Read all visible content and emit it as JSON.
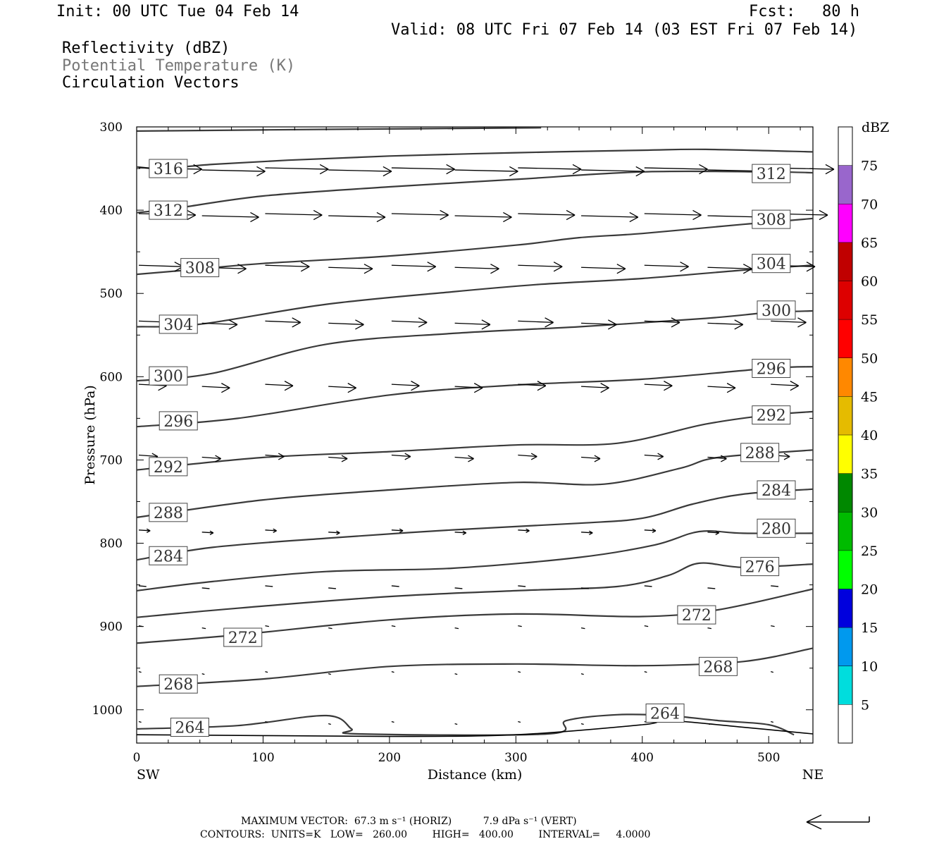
{
  "header": {
    "init": "Init: 00 UTC Tue 04 Feb 14",
    "fcst_label": "Fcst:",
    "fcst_value": "80 h",
    "valid": "Valid: 08 UTC Fri 07 Feb 14 (03 EST Fri 07 Feb 14)",
    "fields": [
      "Reflectivity (dBZ)",
      "Potential Temperature (K)",
      "Circulation Vectors"
    ]
  },
  "footer": {
    "max_vector": "MAXIMUM VECTOR:  67.3 m s⁻¹ (HORIZ)          7.9 dPa s⁻¹ (VERT)",
    "contours": "CONTOURS:  UNITS=K   LOW=   260.00        HIGH=   400.00        INTERVAL=     4.0000"
  },
  "chart_data": {
    "type": "contour",
    "xlabel": "Distance (km)",
    "ylabel": "Pressure (hPa)",
    "xlim": [
      0,
      535
    ],
    "ylim": [
      1040,
      300
    ],
    "x_ticks": [
      0,
      100,
      200,
      300,
      400,
      500
    ],
    "y_ticks": [
      300,
      400,
      500,
      600,
      700,
      800,
      900,
      1000
    ],
    "x_end_labels": {
      "left": "SW",
      "right": "NE"
    },
    "colorbar": {
      "title": "dBZ",
      "labels": [
        75,
        70,
        65,
        60,
        55,
        50,
        45,
        40,
        35,
        30,
        25,
        20,
        15,
        10,
        5
      ],
      "colors": [
        "#ffffff",
        "#9966cc",
        "#ff00ff",
        "#c00000",
        "#dd0000",
        "#ff0000",
        "#ff8800",
        "#e5bb00",
        "#ffff00",
        "#008800",
        "#00bb00",
        "#00ff00",
        "#0000dd",
        "#0099ee",
        "#00dddd",
        "#ffffff"
      ]
    },
    "isentropes": [
      {
        "theta": 316,
        "points": [
          [
            0,
            348
          ],
          [
            20,
            350
          ],
          [
            60,
            345
          ],
          [
            120,
            340
          ],
          [
            200,
            335
          ],
          [
            300,
            331
          ],
          [
            400,
            328
          ],
          [
            450,
            327
          ],
          [
            535,
            330
          ]
        ]
      },
      {
        "theta": 312,
        "points": [
          [
            0,
            403
          ],
          [
            30,
            398
          ],
          [
            100,
            383
          ],
          [
            200,
            372
          ],
          [
            300,
            363
          ],
          [
            400,
            354
          ],
          [
            500,
            354
          ],
          [
            535,
            355
          ]
        ]
      },
      {
        "theta": 308,
        "points": [
          [
            0,
            477
          ],
          [
            40,
            472
          ],
          [
            100,
            464
          ],
          [
            200,
            455
          ],
          [
            300,
            442
          ],
          [
            350,
            433
          ],
          [
            400,
            428
          ],
          [
            480,
            417
          ],
          [
            535,
            410
          ]
        ]
      },
      {
        "theta": 304,
        "points": [
          [
            0,
            540
          ],
          [
            50,
            537
          ],
          [
            150,
            513
          ],
          [
            250,
            498
          ],
          [
            320,
            489
          ],
          [
            400,
            482
          ],
          [
            480,
            472
          ],
          [
            535,
            466
          ]
        ]
      },
      {
        "theta": 300,
        "points": [
          [
            0,
            605
          ],
          [
            60,
            596
          ],
          [
            150,
            561
          ],
          [
            250,
            548
          ],
          [
            350,
            540
          ],
          [
            450,
            530
          ],
          [
            500,
            523
          ],
          [
            535,
            521
          ]
        ]
      },
      {
        "theta": 296,
        "points": [
          [
            0,
            660
          ],
          [
            80,
            650
          ],
          [
            200,
            622
          ],
          [
            300,
            610
          ],
          [
            400,
            603
          ],
          [
            500,
            590
          ],
          [
            535,
            588
          ]
        ]
      },
      {
        "theta": 292,
        "points": [
          [
            0,
            712
          ],
          [
            100,
            697
          ],
          [
            200,
            690
          ],
          [
            300,
            682
          ],
          [
            380,
            680
          ],
          [
            450,
            657
          ],
          [
            500,
            646
          ],
          [
            535,
            642
          ]
        ]
      },
      {
        "theta": 288,
        "points": [
          [
            0,
            769
          ],
          [
            100,
            748
          ],
          [
            200,
            736
          ],
          [
            300,
            727
          ],
          [
            370,
            729
          ],
          [
            430,
            710
          ],
          [
            460,
            697
          ],
          [
            535,
            688
          ]
        ]
      },
      {
        "theta": 284,
        "points": [
          [
            0,
            820
          ],
          [
            60,
            805
          ],
          [
            150,
            794
          ],
          [
            250,
            784
          ],
          [
            350,
            776
          ],
          [
            400,
            770
          ],
          [
            440,
            753
          ],
          [
            480,
            741
          ],
          [
            535,
            735
          ]
        ]
      },
      {
        "theta": 280,
        "points": [
          [
            0,
            857
          ],
          [
            60,
            846
          ],
          [
            150,
            834
          ],
          [
            250,
            830
          ],
          [
            350,
            817
          ],
          [
            410,
            802
          ],
          [
            445,
            786
          ],
          [
            480,
            788
          ],
          [
            535,
            788
          ]
        ]
      },
      {
        "theta": 276,
        "points": [
          [
            0,
            889
          ],
          [
            80,
            878
          ],
          [
            200,
            864
          ],
          [
            300,
            857
          ],
          [
            380,
            852
          ],
          [
            420,
            839
          ],
          [
            445,
            824
          ],
          [
            480,
            829
          ],
          [
            535,
            825
          ]
        ]
      },
      {
        "theta": 272,
        "points": [
          [
            0,
            920
          ],
          [
            80,
            910
          ],
          [
            200,
            892
          ],
          [
            300,
            885
          ],
          [
            400,
            888
          ],
          [
            460,
            880
          ],
          [
            535,
            855
          ]
        ]
      },
      {
        "theta": 268,
        "points": [
          [
            0,
            972
          ],
          [
            100,
            963
          ],
          [
            200,
            948
          ],
          [
            300,
            945
          ],
          [
            400,
            947
          ],
          [
            480,
            942
          ],
          [
            535,
            926
          ]
        ]
      },
      {
        "theta": 264,
        "points": [
          [
            0,
            1023
          ],
          [
            80,
            1019
          ],
          [
            150,
            1007
          ],
          [
            170,
            1023
          ],
          [
            175,
            1029
          ],
          [
            325,
            1029
          ],
          [
            340,
            1013
          ],
          [
            380,
            1006
          ],
          [
            420,
            1007
          ],
          [
            460,
            1013
          ],
          [
            500,
            1018
          ],
          [
            520,
            1030
          ]
        ]
      }
    ],
    "terrain_line": {
      "points": [
        [
          0,
          1030
        ],
        [
          100,
          1031
        ],
        [
          200,
          1032
        ],
        [
          300,
          1030
        ],
        [
          400,
          1018
        ],
        [
          420,
          1013
        ],
        [
          480,
          1021
        ],
        [
          535,
          1029
        ]
      ]
    },
    "contour_labels": [
      {
        "text": "316",
        "x": 25,
        "p": 350
      },
      {
        "text": "312",
        "x": 25,
        "p": 400
      },
      {
        "text": "308",
        "x": 50,
        "p": 469
      },
      {
        "text": "304",
        "x": 33,
        "p": 537
      },
      {
        "text": "300",
        "x": 25,
        "p": 599
      },
      {
        "text": "296",
        "x": 33,
        "p": 653
      },
      {
        "text": "292",
        "x": 25,
        "p": 708
      },
      {
        "text": "288",
        "x": 25,
        "p": 763
      },
      {
        "text": "284",
        "x": 25,
        "p": 815
      },
      {
        "text": "272",
        "x": 84,
        "p": 913
      },
      {
        "text": "268",
        "x": 33,
        "p": 969
      },
      {
        "text": "264",
        "x": 42,
        "p": 1021
      },
      {
        "text": "312",
        "x": 502,
        "p": 356
      },
      {
        "text": "308",
        "x": 502,
        "p": 411
      },
      {
        "text": "304",
        "x": 502,
        "p": 464
      },
      {
        "text": "300",
        "x": 506,
        "p": 520
      },
      {
        "text": "296",
        "x": 502,
        "p": 590
      },
      {
        "text": "292",
        "x": 502,
        "p": 646
      },
      {
        "text": "288",
        "x": 493,
        "p": 691
      },
      {
        "text": "284",
        "x": 506,
        "p": 736
      },
      {
        "text": "280",
        "x": 506,
        "p": 782
      },
      {
        "text": "276",
        "x": 493,
        "p": 828
      },
      {
        "text": "272",
        "x": 443,
        "p": 886
      },
      {
        "text": "268",
        "x": 460,
        "p": 948
      },
      {
        "text": "264",
        "x": 418,
        "p": 1004
      }
    ],
    "vector_rows": [
      {
        "p": 350,
        "len_km": 50
      },
      {
        "p": 405,
        "len_km": 45
      },
      {
        "p": 467,
        "len_km": 35
      },
      {
        "p": 534,
        "len_km": 28
      },
      {
        "p": 610,
        "len_km": 22
      },
      {
        "p": 695,
        "len_km": 15
      },
      {
        "p": 785,
        "len_km": 9
      },
      {
        "p": 852,
        "len_km": 6
      },
      {
        "p": 900,
        "len_km": 3
      },
      {
        "p": 955,
        "len_km": 2
      },
      {
        "p": 1015,
        "len_km": 2
      }
    ],
    "vector_x": [
      0,
      50,
      100,
      150,
      200,
      250,
      300,
      350,
      400,
      450,
      500
    ]
  }
}
